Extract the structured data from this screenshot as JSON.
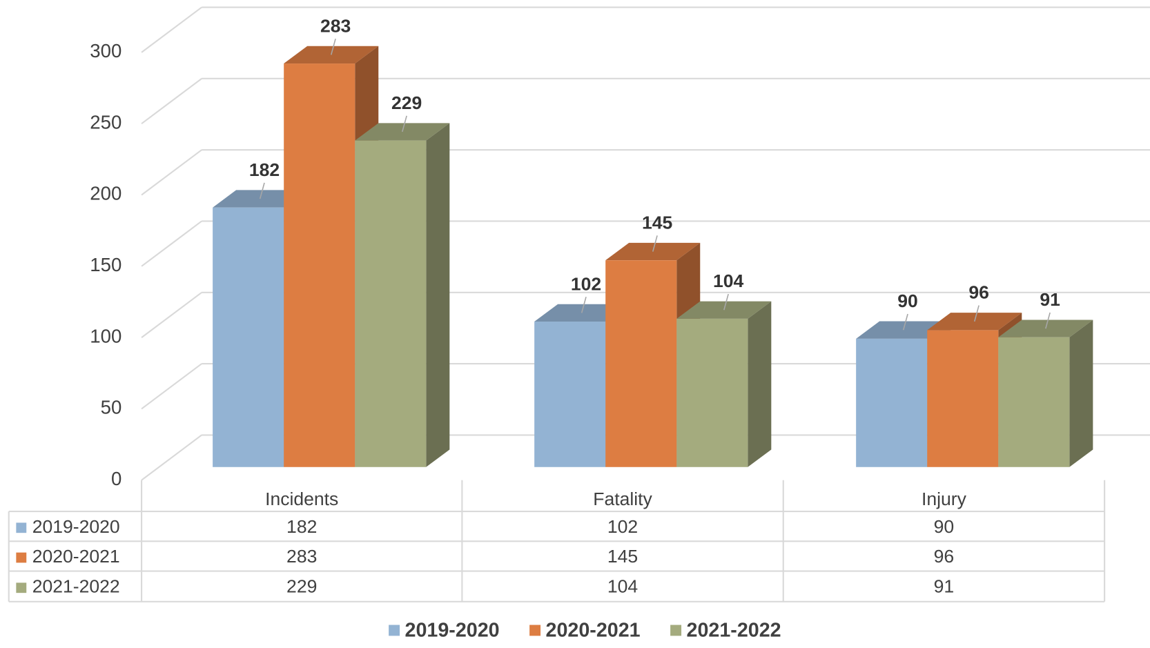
{
  "chart_data": {
    "type": "bar",
    "categories": [
      "Incidents",
      "Fatality",
      "Injury"
    ],
    "series": [
      {
        "name": "2019-2020",
        "color": "#93b3d3",
        "values": [
          182,
          102,
          90
        ]
      },
      {
        "name": "2020-2021",
        "color": "#dd7d42",
        "values": [
          283,
          145,
          96
        ]
      },
      {
        "name": "2021-2022",
        "color": "#a4ab7e",
        "values": [
          229,
          104,
          91
        ]
      }
    ],
    "ylim": [
      0,
      300
    ],
    "yticks": [
      0,
      50,
      100,
      150,
      200,
      250,
      300
    ],
    "grid": true,
    "legend": "bottom"
  }
}
